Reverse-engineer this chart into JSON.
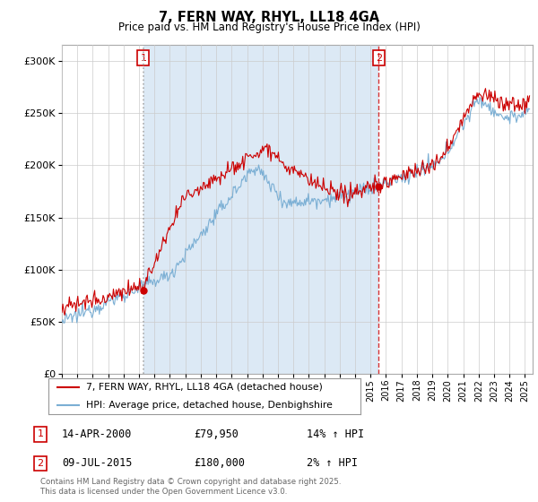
{
  "title": "7, FERN WAY, RHYL, LL18 4GA",
  "subtitle": "Price paid vs. HM Land Registry's House Price Index (HPI)",
  "ylabel_ticks": [
    "£0",
    "£50K",
    "£100K",
    "£150K",
    "£200K",
    "£250K",
    "£300K"
  ],
  "ytick_values": [
    0,
    50000,
    100000,
    150000,
    200000,
    250000,
    300000
  ],
  "ylim": [
    0,
    315000
  ],
  "xlim_start": 1995.0,
  "xlim_end": 2025.5,
  "red_color": "#cc0000",
  "blue_color": "#7bafd4",
  "shade_color": "#dce9f5",
  "vline1_x": 2000.28,
  "vline2_x": 2015.52,
  "legend_line1": "7, FERN WAY, RHYL, LL18 4GA (detached house)",
  "legend_line2": "HPI: Average price, detached house, Denbighshire",
  "table_row1": [
    "1",
    "14-APR-2000",
    "£79,950",
    "14% ↑ HPI"
  ],
  "table_row2": [
    "2",
    "09-JUL-2015",
    "£180,000",
    "2% ↑ HPI"
  ],
  "footnote": "Contains HM Land Registry data © Crown copyright and database right 2025.\nThis data is licensed under the Open Government Licence v3.0.",
  "background_color": "#ffffff",
  "grid_color": "#cccccc",
  "sale1_y": 79950,
  "sale2_y": 180000
}
